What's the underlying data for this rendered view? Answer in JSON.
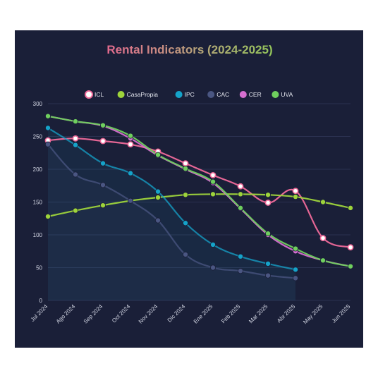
{
  "chart_data": {
    "type": "line",
    "title": "Rental Indicators (2024-2025)",
    "xlabel": "",
    "ylabel": "",
    "categories": [
      "Jul 2024",
      "Ago 2024",
      "Sep 2024",
      "Oct 2024",
      "Nov 2024",
      "Dic 2024",
      "Ene 2025",
      "Feb 2025",
      "Mar 2025",
      "Abr 2025",
      "May 2025",
      "Jun 2025"
    ],
    "ylim": [
      0,
      300
    ],
    "yticks": [
      0,
      50,
      100,
      150,
      200,
      250,
      300
    ],
    "grid": true,
    "legend_position": "top",
    "series": [
      {
        "name": "ICL",
        "color": "#f06a9a",
        "area": false,
        "values": [
          244,
          247,
          243,
          238,
          227,
          209,
          191,
          174,
          149,
          167,
          95,
          81
        ]
      },
      {
        "name": "CasaPropia",
        "color": "#9ed43b",
        "area": false,
        "values": [
          128,
          137,
          145,
          152,
          157,
          161,
          162,
          162,
          161,
          158,
          150,
          141
        ]
      },
      {
        "name": "IPC",
        "color": "#15a3c9",
        "area": true,
        "values": [
          263,
          237,
          209,
          194,
          166,
          118,
          85,
          67,
          56,
          47,
          null,
          null
        ]
      },
      {
        "name": "CAC",
        "color": "#4a5682",
        "area": true,
        "values": [
          238,
          192,
          176,
          152,
          122,
          70,
          50,
          45,
          38,
          34,
          null,
          null
        ]
      },
      {
        "name": "CER",
        "color": "#d66fd0",
        "area": false,
        "values": [
          281,
          273,
          266,
          247,
          221,
          200,
          179,
          140,
          100,
          75,
          61,
          52
        ]
      },
      {
        "name": "UVA",
        "color": "#6fcf5e",
        "area": false,
        "values": [
          281,
          273,
          267,
          251,
          222,
          201,
          181,
          141,
          102,
          79,
          61,
          52
        ]
      }
    ]
  }
}
